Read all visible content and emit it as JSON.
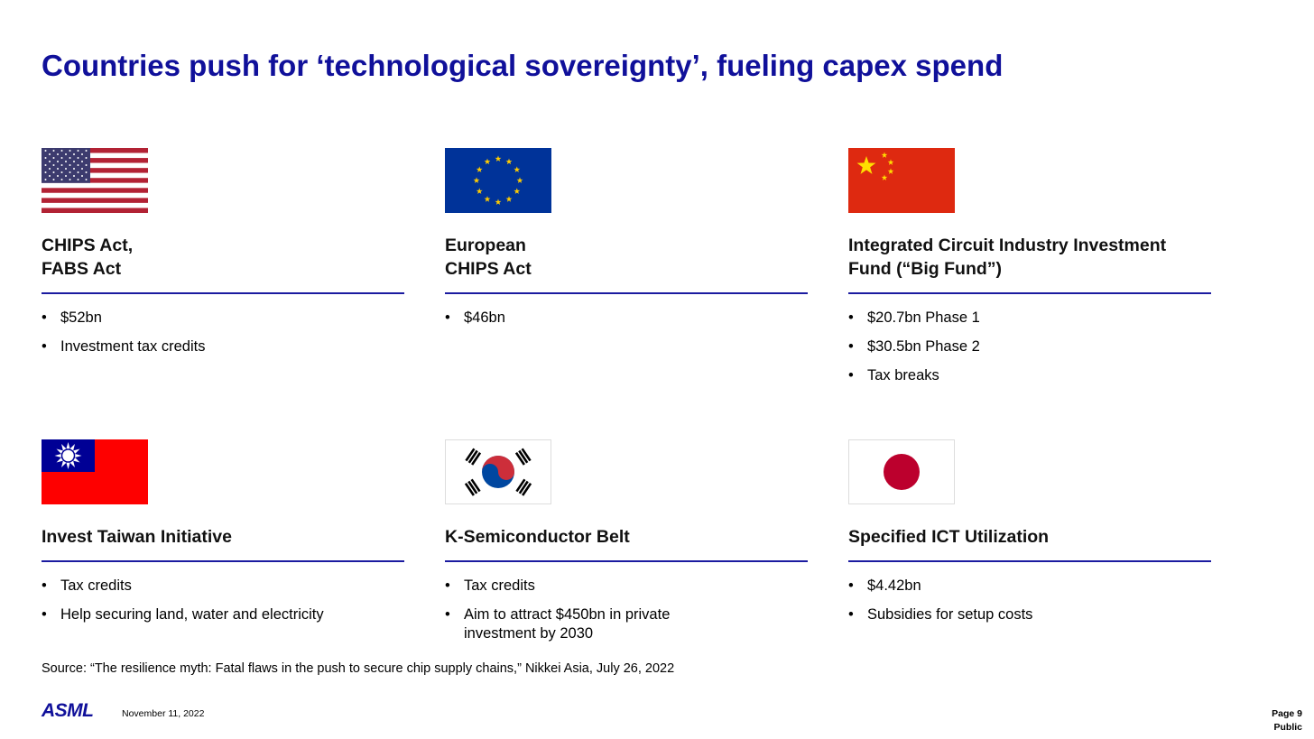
{
  "header": {
    "title": "Countries push for ‘technological sovereignty’, fueling capex spend"
  },
  "cards": [
    {
      "heading": [
        "CHIPS Act,",
        "FABS Act"
      ],
      "bullets": [
        "$52bn",
        "Investment tax credits"
      ]
    },
    {
      "heading": [
        "European",
        "CHIPS Act"
      ],
      "bullets": [
        "$46bn"
      ]
    },
    {
      "heading": [
        "Integrated Circuit Industry Investment",
        "Fund (“Big Fund”)"
      ],
      "bullets": [
        "$20.7bn Phase 1",
        "$30.5bn Phase 2",
        "Tax breaks"
      ]
    },
    {
      "heading": [
        "Invest Taiwan Initiative"
      ],
      "bullets": [
        "Tax credits",
        "Help securing land, water and electricity"
      ]
    },
    {
      "heading": [
        "K-Semiconductor Belt"
      ],
      "bullets": [
        "Tax credits",
        "Aim to attract $450bn in private investment by 2030"
      ]
    },
    {
      "heading": [
        "Specified ICT Utilization"
      ],
      "bullets": [
        "$4.42bn",
        "Subsidies for setup costs"
      ]
    }
  ],
  "source": "Source: “The resilience myth: Fatal flaws in the push to secure chip supply chains,” Nikkei Asia, July 26, 2022",
  "footer": {
    "logo": "ASML",
    "date": "November 11, 2022",
    "page": "Page 9",
    "classification": "Public"
  }
}
